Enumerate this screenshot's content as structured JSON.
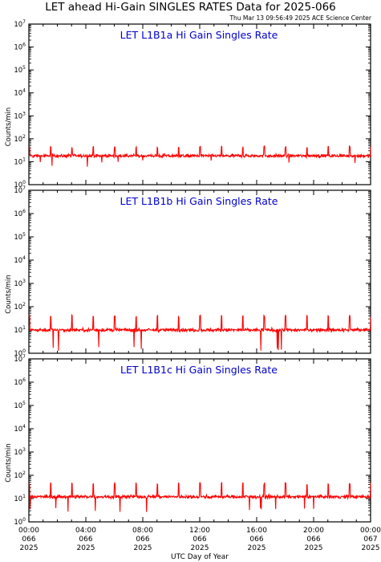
{
  "title": "LET ahead Hi-Gain SINGLES RATES Data for 2025-066",
  "timestamp": "Thu Mar 13 09:56:49 2025 ACE Science Center",
  "xlabel": "UTC Day of Year",
  "colors": {
    "series": "#ff0000",
    "panel_title": "#0000cc",
    "axes": "#000000"
  },
  "chart_data": [
    {
      "type": "line",
      "title": "LET L1B1a Hi Gain Singles Rate",
      "ylabel": "Counts/min",
      "yscale": "log",
      "ylim": [
        1,
        10000000
      ],
      "y_ticks": [
        {
          "base": "10",
          "exp": "0"
        },
        {
          "base": "10",
          "exp": "1"
        },
        {
          "base": "10",
          "exp": "2"
        },
        {
          "base": "10",
          "exp": "3"
        },
        {
          "base": "10",
          "exp": "4"
        },
        {
          "base": "10",
          "exp": "5"
        },
        {
          "base": "10",
          "exp": "6"
        },
        {
          "base": "10",
          "exp": "7"
        }
      ],
      "xlim": [
        0,
        24
      ],
      "baseline": 18,
      "spike_peak": 45,
      "spikes_every_hours": 1.5,
      "min_dip": 6,
      "series": [
        {
          "values_description": "",
          "color": "#ff0000"
        }
      ]
    },
    {
      "type": "line",
      "title": "LET L1B1b Hi Gain Singles Rate",
      "ylabel": "Counts/min",
      "yscale": "log",
      "ylim": [
        1,
        10000000
      ],
      "y_ticks": [
        {
          "base": "10",
          "exp": "0"
        },
        {
          "base": "10",
          "exp": "1"
        },
        {
          "base": "10",
          "exp": "2"
        },
        {
          "base": "10",
          "exp": "3"
        },
        {
          "base": "10",
          "exp": "4"
        },
        {
          "base": "10",
          "exp": "5"
        },
        {
          "base": "10",
          "exp": "6"
        },
        {
          "base": "10",
          "exp": "7"
        }
      ],
      "xlim": [
        0,
        24
      ],
      "baseline": 10,
      "spike_peak": 40,
      "spikes_every_hours": 1.5,
      "min_dip": 1,
      "series": [
        {
          "values_description": "",
          "color": "#ff0000"
        }
      ]
    },
    {
      "type": "line",
      "title": "LET L1B1c Hi Gain Singles Rate",
      "ylabel": "Counts/min",
      "yscale": "log",
      "ylim": [
        1,
        10000000
      ],
      "y_ticks": [
        {
          "base": "10",
          "exp": "0"
        },
        {
          "base": "10",
          "exp": "1"
        },
        {
          "base": "10",
          "exp": "2"
        },
        {
          "base": "10",
          "exp": "3"
        },
        {
          "base": "10",
          "exp": "4"
        },
        {
          "base": "10",
          "exp": "5"
        },
        {
          "base": "10",
          "exp": "6"
        },
        {
          "base": "10",
          "exp": "7"
        }
      ],
      "xlim": [
        0,
        24
      ],
      "baseline": 12,
      "spike_peak": 45,
      "spikes_every_hours": 1.5,
      "min_dip": 2,
      "series": [
        {
          "values_description": "",
          "color": "#ff0000"
        }
      ]
    }
  ],
  "x_ticks": [
    {
      "hour": 0,
      "time": "00:00",
      "day": "066",
      "year": "2025"
    },
    {
      "hour": 4,
      "time": "04:00",
      "day": "066",
      "year": "2025"
    },
    {
      "hour": 8,
      "time": "08:00",
      "day": "066",
      "year": "2025"
    },
    {
      "hour": 12,
      "time": "12:00",
      "day": "066",
      "year": "2025"
    },
    {
      "hour": 16,
      "time": "16:00",
      "day": "066",
      "year": "2025"
    },
    {
      "hour": 20,
      "time": "20:00",
      "day": "066",
      "year": "2025"
    },
    {
      "hour": 24,
      "time": "00:00",
      "day": "067",
      "year": "2025"
    }
  ]
}
